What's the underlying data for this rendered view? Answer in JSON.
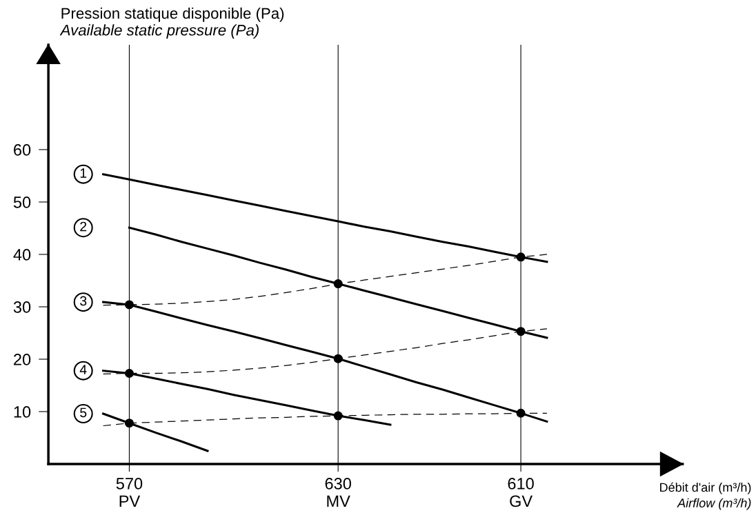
{
  "chart_data": {
    "type": "line",
    "ylabel": "Pression statique disponible (Pa)\nAvailable static pressure (Pa)",
    "xlabel": "Débit d'air (m³/h)\nAirflow (m³/h)",
    "categories": [
      null,
      null,
      null,
      "570\nPV",
      null,
      null,
      null,
      null,
      null,
      null,
      null,
      "630\nMV",
      null,
      null,
      null,
      null,
      null,
      null,
      "610\nGV",
      null,
      null,
      null,
      null,
      null,
      null
    ],
    "ylim": [
      0,
      80
    ],
    "yticks": [
      10,
      20,
      30,
      40,
      50,
      60
    ],
    "grid": "x",
    "legend": false,
    "series": [
      {
        "name": "1",
        "color": "#000000",
        "values": [
          null,
          null,
          55.3,
          54.3,
          53.3,
          52.3,
          51.3,
          50.3,
          49.3,
          48.3,
          47.3,
          46.3,
          45.3,
          44.4,
          43.4,
          42.4,
          41.5,
          40.5,
          39.5,
          38.6,
          null,
          null,
          null,
          null,
          null
        ]
      },
      {
        "name": "2",
        "color": "#000000",
        "values": [
          null,
          null,
          null,
          45.1,
          43.8,
          42.4,
          41.1,
          39.8,
          38.4,
          37.1,
          35.7,
          34.4,
          33.1,
          31.8,
          30.5,
          29.2,
          27.9,
          26.6,
          25.3,
          24.1,
          null,
          null,
          null,
          null,
          null
        ]
      },
      {
        "name": "3",
        "color": "#000000",
        "values": [
          null,
          null,
          30.9,
          30.4,
          29.1,
          27.8,
          26.5,
          25.3,
          24.0,
          22.7,
          21.4,
          20.1,
          18.6,
          17.1,
          15.6,
          14.2,
          12.7,
          11.2,
          9.7,
          8.1,
          null,
          null,
          null,
          null,
          null
        ]
      },
      {
        "name": "4",
        "color": "#000000",
        "values": [
          null,
          null,
          17.8,
          17.3,
          16.3,
          15.3,
          14.3,
          13.2,
          12.2,
          11.2,
          10.2,
          9.2,
          8.4,
          7.5,
          null,
          null,
          null,
          null,
          null,
          null,
          null,
          null,
          null,
          null,
          null
        ]
      },
      {
        "name": "5",
        "color": "#000000",
        "values": [
          null,
          null,
          9.6,
          7.8,
          6.0,
          4.3,
          2.5,
          null,
          null,
          null,
          null,
          null,
          null,
          null,
          null,
          null,
          null,
          null,
          null,
          null,
          null,
          null,
          null,
          null,
          null
        ]
      },
      {
        "color": "#000000",
        "line_style": "dashed",
        "values": [
          null,
          null,
          30.3,
          30.4,
          30.5,
          30.7,
          31.0,
          31.4,
          32.0,
          32.7,
          33.5,
          34.4,
          35.1,
          35.8,
          36.5,
          37.2,
          37.9,
          38.7,
          39.5,
          40.0,
          null,
          null,
          null,
          null,
          null
        ]
      },
      {
        "color": "#000000",
        "line_style": "dashed",
        "values": [
          null,
          null,
          17.2,
          17.3,
          17.3,
          17.4,
          17.6,
          17.9,
          18.3,
          18.8,
          19.4,
          20.1,
          20.8,
          21.5,
          22.2,
          23.0,
          23.7,
          24.5,
          25.3,
          25.8,
          null,
          null,
          null,
          null,
          null
        ]
      },
      {
        "color": "#000000",
        "line_style": "dashed",
        "values": [
          null,
          null,
          7.3,
          7.8,
          8.0,
          8.2,
          8.4,
          8.6,
          8.8,
          8.9,
          9.1,
          9.2,
          9.3,
          9.4,
          9.5,
          9.5,
          9.6,
          9.6,
          9.7,
          9.7,
          null,
          null,
          null,
          null,
          null
        ]
      },
      {
        "type": "scatter",
        "color": "#000000",
        "marker": "circle",
        "values": [
          null,
          null,
          null,
          30.4,
          null,
          null,
          null,
          null,
          null,
          null,
          null,
          34.4,
          null,
          null,
          null,
          null,
          null,
          null,
          39.5,
          null,
          null,
          null,
          null,
          null,
          null
        ]
      },
      {
        "type": "scatter",
        "color": "#000000",
        "marker": "circle",
        "values": [
          null,
          null,
          null,
          17.3,
          null,
          null,
          null,
          null,
          null,
          null,
          null,
          20.1,
          null,
          null,
          null,
          null,
          null,
          null,
          25.3,
          null,
          null,
          null,
          null,
          null,
          null
        ]
      },
      {
        "type": "scatter",
        "color": "#000000",
        "marker": "circle",
        "values": [
          null,
          null,
          null,
          7.8,
          null,
          null,
          null,
          null,
          null,
          null,
          null,
          9.2,
          null,
          null,
          null,
          null,
          null,
          null,
          9.7,
          null,
          null,
          null,
          null,
          null,
          null
        ]
      }
    ]
  }
}
